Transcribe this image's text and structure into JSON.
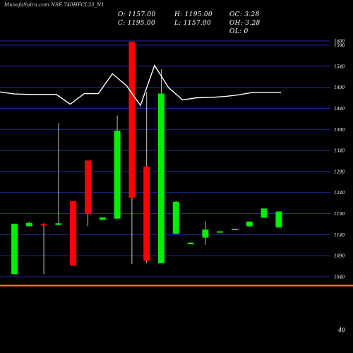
{
  "header": {
    "title": "MunafaSutra.com",
    "symbol": "NSE 740HFCL33_N1"
  },
  "ohlc": {
    "o": "O: 1157.00",
    "h": "H: 1195.00",
    "oc": "OC: 3.28",
    "c": "C: 1195.00",
    "l": "L: 1157.00",
    "oh": "OH: 3.28",
    "ol": "OL: 0"
  },
  "colors": {
    "background": "#000000",
    "up": "#00ee00",
    "down": "#ff0000",
    "grid": "#1f2a9c",
    "line": "#ffffff",
    "baseline": "#ff8c00"
  },
  "chart_data": {
    "type": "candlestick",
    "y_ticks": [
      "1600",
      "1590",
      "1540",
      "1490",
      "1440",
      "1390",
      "1340",
      "1290",
      "1240",
      "1190",
      "1140",
      "1090",
      "1040"
    ],
    "ylim": [
      1040,
      1600
    ],
    "volume_label": "40",
    "candles": [
      {
        "o": 1046,
        "h": 1166,
        "l": 1046,
        "c": 1166
      },
      {
        "o": 1160,
        "h": 1170,
        "l": 1160,
        "c": 1168
      },
      {
        "o": 1165,
        "h": 1167,
        "l": 1046,
        "c": 1163
      },
      {
        "o": 1163,
        "h": 1405,
        "l": 1163,
        "c": 1167
      },
      {
        "o": 1220,
        "h": 1220,
        "l": 1066,
        "c": 1066
      },
      {
        "o": 1316,
        "h": 1316,
        "l": 1160,
        "c": 1190
      },
      {
        "o": 1175,
        "h": 1181,
        "l": 1175,
        "c": 1181
      },
      {
        "o": 1178,
        "h": 1423,
        "l": 1178,
        "c": 1387
      },
      {
        "o": 1598,
        "h": 1598,
        "l": 1070,
        "c": 1228
      },
      {
        "o": 1302,
        "h": 1479,
        "l": 1072,
        "c": 1078
      },
      {
        "o": 1072,
        "h": 1533,
        "l": 1072,
        "c": 1475
      },
      {
        "o": 1142,
        "h": 1220,
        "l": 1142,
        "c": 1218
      },
      {
        "o": 1117,
        "h": 1117,
        "l": 1117,
        "c": 1121
      },
      {
        "o": 1133,
        "h": 1172,
        "l": 1116,
        "c": 1152
      },
      {
        "o": 1148,
        "h": 1148,
        "l": 1146,
        "c": 1148
      },
      {
        "o": 1154,
        "h": 1154,
        "l": 1152,
        "c": 1154
      },
      {
        "o": 1160,
        "h": 1172,
        "l": 1158,
        "c": 1171
      },
      {
        "o": 1180,
        "h": 1202,
        "l": 1180,
        "c": 1202
      },
      {
        "o": 1157,
        "h": 1195,
        "l": 1157,
        "c": 1195
      }
    ],
    "line": [
      1479,
      1474,
      1473,
      1473,
      1473,
      1450,
      1475,
      1475,
      1522,
      1494,
      1447,
      1542,
      1489,
      1460,
      1465,
      1466,
      1468,
      1472,
      1478,
      1478,
      1478
    ]
  }
}
